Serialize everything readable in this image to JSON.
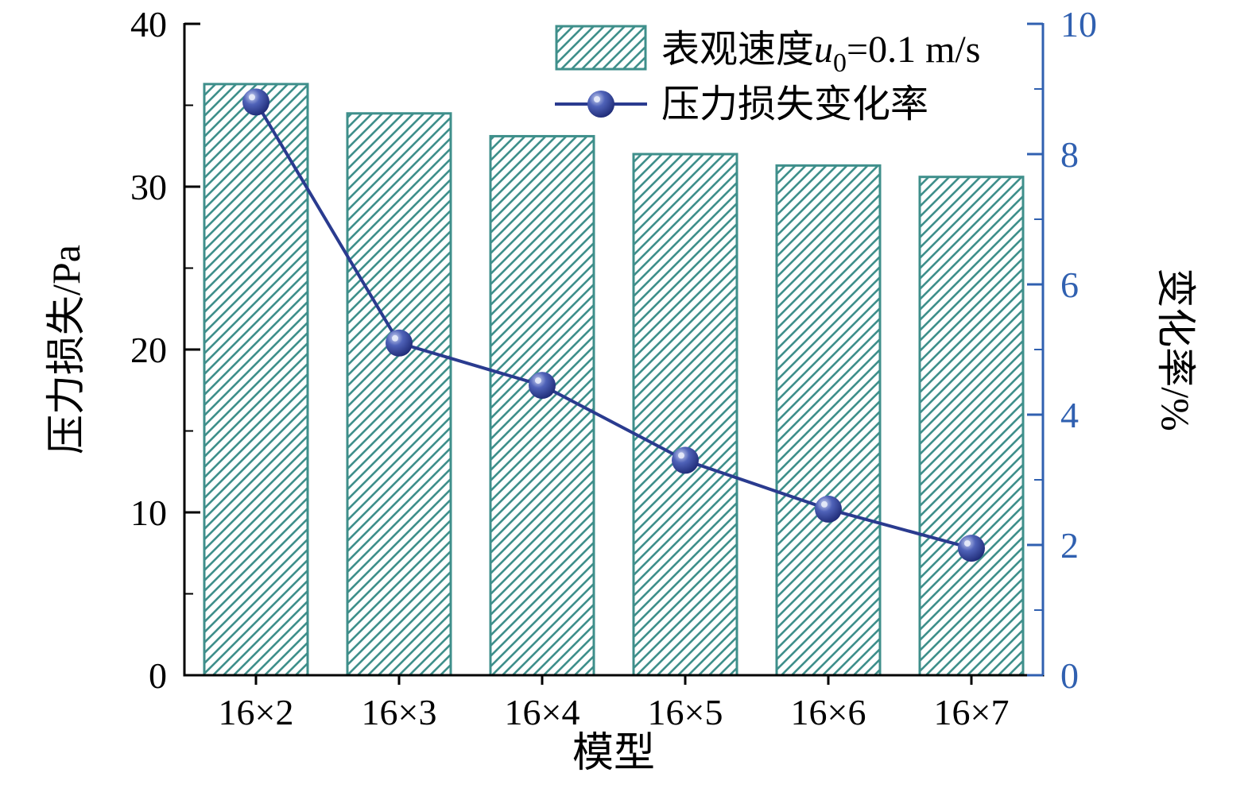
{
  "chart_data": {
    "type": "bar",
    "subtype": "combo-bar-line",
    "categories": [
      "16×2",
      "16×3",
      "16×4",
      "16×5",
      "16×6",
      "16×7"
    ],
    "series": [
      {
        "name": "表观速度u0=0.1 m/s",
        "type": "bar",
        "axis": "left",
        "values": [
          36.3,
          34.5,
          33.1,
          32.0,
          31.3,
          30.6
        ]
      },
      {
        "name": "压力损失变化率",
        "type": "line",
        "axis": "right",
        "values": [
          8.8,
          5.1,
          4.45,
          3.3,
          2.55,
          1.95
        ]
      }
    ],
    "left_axis": {
      "label": "压力损失/Pa",
      "min": 0,
      "max": 40,
      "ticks": [
        0,
        10,
        20,
        30,
        40
      ],
      "minor_step": 5
    },
    "right_axis": {
      "label": "变化率/%",
      "min": 0,
      "max": 10,
      "ticks": [
        0,
        2,
        4,
        6,
        8,
        10
      ],
      "minor_step": 1
    },
    "x_axis": {
      "label": "模型"
    },
    "legend": {
      "bar_label_prefix": "表观速度",
      "bar_label_var": "u",
      "bar_label_sub": "0",
      "bar_label_suffix": "=0.1 m/s",
      "line_label": "压力损失变化率"
    },
    "colors": {
      "bar": "#3f8f8b",
      "line": "#2a3b8f",
      "marker_light": "#c9d2f2",
      "marker_mid": "#4f62b8",
      "marker_dark": "#1a2670",
      "right_axis": "#3060b0",
      "axis": "#000000",
      "background": "#ffffff"
    },
    "layout": {
      "legend_position": "top-center-inside",
      "grid": false
    }
  }
}
